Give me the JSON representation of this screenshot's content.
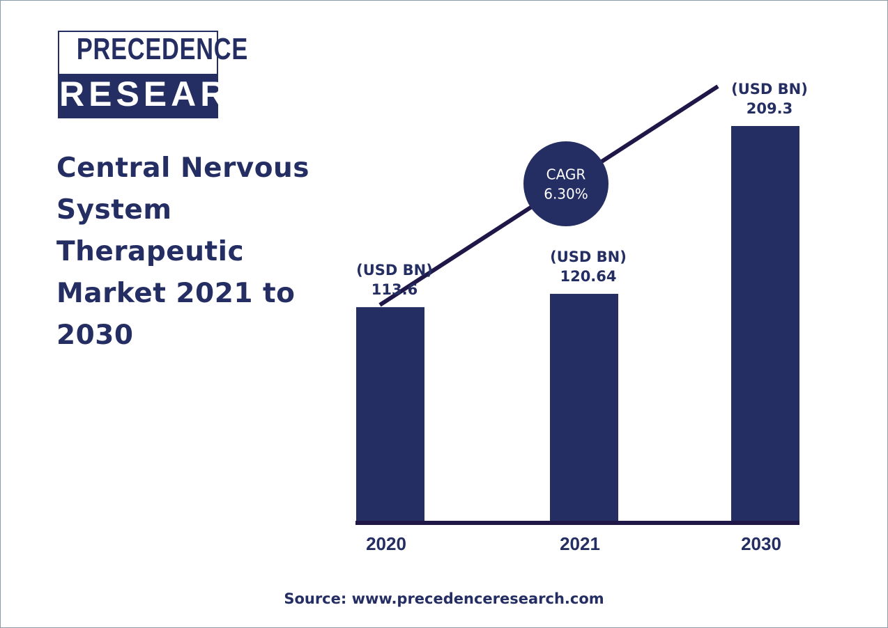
{
  "logo": {
    "line1": "PRECEDENCE",
    "line2": "RESEARCH"
  },
  "chart_data": {
    "type": "bar",
    "title": "Central Nervous System Therapeutic Market 2021 to 2030",
    "categories": [
      "2020",
      "2021",
      "2030"
    ],
    "values": [
      113.6,
      120.64,
      209.3
    ],
    "unit_label": "(USD BN)",
    "color": "#252e62",
    "cagr": {
      "label": "CAGR",
      "value": 6.3,
      "value_label": "6.30%"
    }
  },
  "source": "Source: www.precedenceresearch.com"
}
